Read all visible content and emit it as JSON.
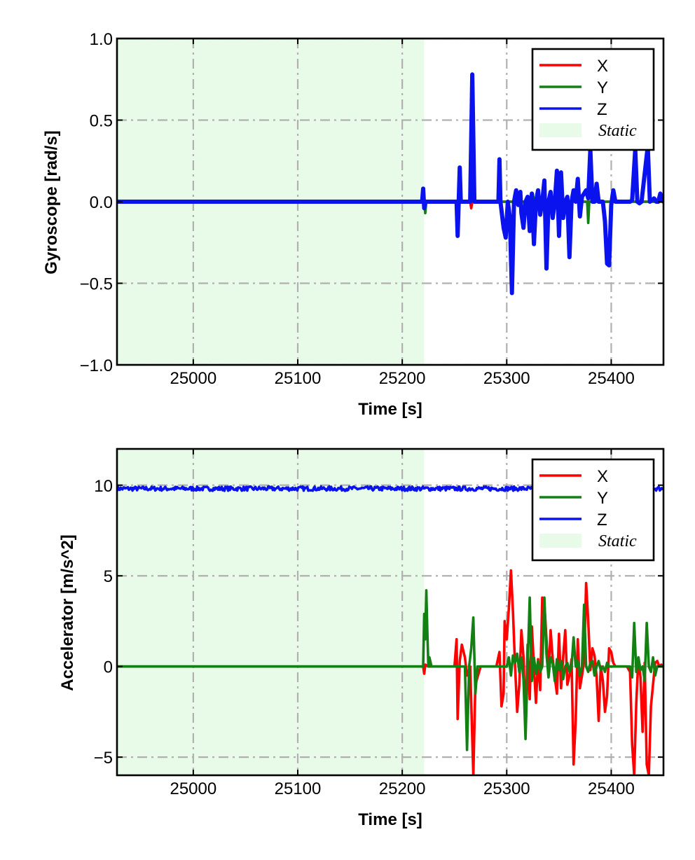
{
  "colors": {
    "x": "#ff0000",
    "y": "#138013",
    "z": "#0a12ee",
    "static_fill": "#e8fbe8",
    "grid": "#b0b0b0"
  },
  "chart_data": [
    {
      "type": "line",
      "xlabel": "Time [s]",
      "ylabel": "Gyroscope [rad/s]",
      "xlim": [
        24927,
        25450
      ],
      "ylim": [
        -1.0,
        1.0
      ],
      "xticks": [
        25000,
        25100,
        25200,
        25300,
        25400
      ],
      "xtick_labels": [
        "25000",
        "25100",
        "25200",
        "25300",
        "25400"
      ],
      "yticks": [
        1.0,
        0.5,
        0.0,
        -0.5,
        -1.0
      ],
      "ytick_labels": [
        "1.0",
        "0.5",
        "0.0",
        "−0.5",
        "−1.0"
      ],
      "grid": true,
      "legend_position": "top-right",
      "legend": [
        "X",
        "Y",
        "Z",
        "Static"
      ],
      "static_region": [
        24927,
        25221
      ],
      "series": [
        {
          "name": "X",
          "x": [
            24927,
            25219,
            25220,
            25221,
            25222,
            25265,
            25266,
            25267,
            25450
          ],
          "y": [
            0.0,
            0.0,
            0.04,
            -0.03,
            0.0,
            0.0,
            -0.04,
            0.0,
            0.0
          ]
        },
        {
          "name": "Y",
          "x": [
            24927,
            25221,
            25222,
            25223,
            25324,
            25325,
            25326,
            25377,
            25378,
            25379,
            25450
          ],
          "y": [
            0.0,
            0.0,
            -0.07,
            0.0,
            0.0,
            0.05,
            0.0,
            0.0,
            -0.13,
            0.0,
            0.0
          ]
        },
        {
          "name": "Z",
          "x": [
            24927,
            25219,
            25220,
            25221,
            25222,
            25252,
            25253,
            25254,
            25255,
            25256,
            25265,
            25267,
            25269,
            25292,
            25293,
            25294,
            25297,
            25299,
            25301,
            25303,
            25305,
            25307,
            25309,
            25311,
            25313,
            25314,
            25316,
            25318,
            25320,
            25322,
            25324,
            25326,
            25328,
            25330,
            25332,
            25334,
            25336,
            25338,
            25340,
            25342,
            25344,
            25346,
            25348,
            25350,
            25352,
            25354,
            25356,
            25358,
            25360,
            25362,
            25364,
            25366,
            25368,
            25370,
            25372,
            25374,
            25376,
            25378,
            25380,
            25382,
            25384,
            25386,
            25388,
            25390,
            25392,
            25394,
            25396,
            25398,
            25400,
            25402,
            25404,
            25406,
            25418,
            25420,
            25423,
            25425,
            25427,
            25429,
            25435,
            25437,
            25439,
            25441,
            25443,
            25445,
            25447,
            25450
          ],
          "y": [
            0.0,
            0.0,
            0.08,
            -0.04,
            0.0,
            0.0,
            -0.21,
            0.0,
            0.21,
            0.0,
            0.0,
            0.78,
            0.0,
            0.0,
            0.26,
            0.0,
            -0.16,
            -0.22,
            0.0,
            -0.1,
            -0.56,
            0.0,
            0.07,
            -0.02,
            0.06,
            -0.07,
            -0.16,
            0.0,
            0.03,
            -0.18,
            0.05,
            -0.26,
            0.0,
            0.07,
            -0.08,
            0.0,
            0.13,
            -0.41,
            0.0,
            0.06,
            -0.1,
            0.0,
            0.19,
            -0.21,
            0.18,
            -0.1,
            0.0,
            0.03,
            -0.34,
            0.0,
            0.07,
            0.0,
            0.14,
            -0.09,
            0.03,
            0.05,
            0.07,
            0.02,
            0.32,
            0.0,
            0.0,
            0.11,
            0.0,
            0.0,
            0.0,
            -0.12,
            -0.38,
            -0.39,
            -0.02,
            0.07,
            0.0,
            0.0,
            0.0,
            0.01,
            0.32,
            0.0,
            -0.01,
            0.0,
            0.34,
            0.0,
            0.01,
            0.02,
            0.0,
            0.0,
            0.05,
            0.0
          ]
        }
      ]
    },
    {
      "type": "line",
      "xlabel": "Time [s]",
      "ylabel": "Accelerator [m/s^2]",
      "xlim": [
        24927,
        25450
      ],
      "ylim": [
        -6.0,
        12.0
      ],
      "xticks": [
        25000,
        25100,
        25200,
        25300,
        25400
      ],
      "xtick_labels": [
        "25000",
        "25100",
        "25200",
        "25300",
        "25400"
      ],
      "yticks": [
        10,
        5,
        0,
        -5
      ],
      "ytick_labels": [
        "10",
        "5",
        "0",
        "−5"
      ],
      "grid": true,
      "legend_position": "top-right",
      "legend": [
        "X",
        "Y",
        "Z",
        "Static"
      ],
      "static_region": [
        24927,
        25221
      ],
      "series": [
        {
          "name": "Z",
          "x": [
            24927,
            25450
          ],
          "y": [
            9.81,
            9.81
          ],
          "noise": 0.12
        },
        {
          "name": "X",
          "x": [
            24927,
            25220,
            25221,
            25222,
            25225,
            25250,
            25252,
            25253,
            25255,
            25257,
            25260,
            25262,
            25265,
            25267,
            25268,
            25270,
            25275,
            25290,
            25293,
            25295,
            25297,
            25298,
            25300,
            25302,
            25304,
            25306,
            25308,
            25310,
            25312,
            25314,
            25316,
            25318,
            25320,
            25322,
            25324,
            25326,
            25328,
            25330,
            25332,
            25334,
            25336,
            25338,
            25340,
            25342,
            25344,
            25346,
            25348,
            25350,
            25352,
            25354,
            25356,
            25358,
            25360,
            25362,
            25364,
            25366,
            25368,
            25370,
            25372,
            25374,
            25376,
            25378,
            25380,
            25382,
            25384,
            25386,
            25388,
            25390,
            25392,
            25394,
            25396,
            25398,
            25400,
            25402,
            25404,
            25406,
            25410,
            25415,
            25418,
            25420,
            25422,
            25424,
            25426,
            25428,
            25430,
            25432,
            25434,
            25436,
            25438,
            25440,
            25442,
            25444,
            25446,
            25448,
            25450
          ],
          "y": [
            0.0,
            0.0,
            -0.4,
            0.1,
            0.0,
            0.0,
            1.5,
            -2.9,
            0.3,
            1.2,
            0.5,
            -0.5,
            0.0,
            -4.0,
            -6.0,
            -1.0,
            0.0,
            0.0,
            0.8,
            -2.2,
            -1.5,
            2.5,
            1.5,
            3.2,
            5.3,
            3.0,
            0.0,
            -2.5,
            -1.0,
            2.0,
            0.5,
            -3.3,
            1.2,
            -1.8,
            2.2,
            0.0,
            -2.0,
            0.4,
            -1.3,
            3.8,
            3.5,
            1.5,
            -0.5,
            2.0,
            0.4,
            -0.6,
            -1.5,
            1.8,
            -1.2,
            0.5,
            2.0,
            -1.0,
            -0.5,
            0.4,
            -5.4,
            -3.0,
            1.5,
            -1.2,
            -0.5,
            0.3,
            4.6,
            2.5,
            -0.2,
            1.0,
            0.6,
            -0.6,
            -3.0,
            0.0,
            -0.8,
            -2.5,
            -1.6,
            1.0,
            0.8,
            0.2,
            0.0,
            0.0,
            0.0,
            0.0,
            -0.3,
            -4.3,
            -6.0,
            -2.0,
            0.5,
            -0.6,
            -3.6,
            0.2,
            -5.4,
            -6.0,
            -2.2,
            -1.0,
            0.2,
            0.3,
            0.0,
            0.1,
            0.0
          ]
        },
        {
          "name": "Y",
          "x": [
            24927,
            25220,
            25221,
            25222,
            25223,
            25224,
            25225,
            25226,
            25228,
            25260,
            25262,
            25264,
            25266,
            25268,
            25270,
            25272,
            25275,
            25300,
            25302,
            25304,
            25306,
            25308,
            25310,
            25312,
            25314,
            25316,
            25318,
            25320,
            25322,
            25324,
            25326,
            25328,
            25330,
            25332,
            25334,
            25336,
            25338,
            25340,
            25342,
            25344,
            25346,
            25348,
            25350,
            25352,
            25354,
            25356,
            25358,
            25360,
            25362,
            25364,
            25366,
            25368,
            25370,
            25372,
            25374,
            25376,
            25378,
            25380,
            25382,
            25384,
            25386,
            25388,
            25390,
            25392,
            25394,
            25396,
            25398,
            25400,
            25402,
            25404,
            25406,
            25410,
            25415,
            25418,
            25420,
            25422,
            25424,
            25426,
            25428,
            25430,
            25432,
            25434,
            25436,
            25438,
            25440,
            25442,
            25444,
            25446,
            25448,
            25450
          ],
          "y": [
            0.0,
            0.0,
            2.9,
            1.5,
            4.2,
            2.0,
            0.0,
            0.5,
            0.0,
            0.0,
            -4.6,
            0.0,
            1.0,
            2.7,
            -1.5,
            0.0,
            0.0,
            0.0,
            0.5,
            -0.5,
            0.6,
            0.2,
            0.7,
            -0.3,
            0.5,
            -0.7,
            -4.0,
            0.0,
            3.8,
            -0.8,
            0.5,
            -0.4,
            0.3,
            -0.3,
            0.0,
            3.8,
            0.7,
            -0.6,
            0.5,
            0.2,
            -0.8,
            0.4,
            -0.2,
            0.3,
            -0.7,
            0.0,
            0.2,
            -0.3,
            0.0,
            1.6,
            0.0,
            0.3,
            -0.5,
            0.0,
            3.4,
            0.0,
            -0.3,
            0.2,
            0.3,
            -0.5,
            0.0,
            0.3,
            -0.2,
            0.0,
            -0.3,
            0.2,
            0.0,
            0.0,
            0.0,
            0.0,
            0.0,
            0.0,
            0.0,
            0.0,
            -0.6,
            2.4,
            -0.3,
            0.5,
            -0.2,
            0.0,
            -0.8,
            2.4,
            0.0,
            -0.3,
            0.5,
            -0.5,
            0.0,
            0.0,
            0.0,
            0.0
          ]
        }
      ]
    }
  ]
}
